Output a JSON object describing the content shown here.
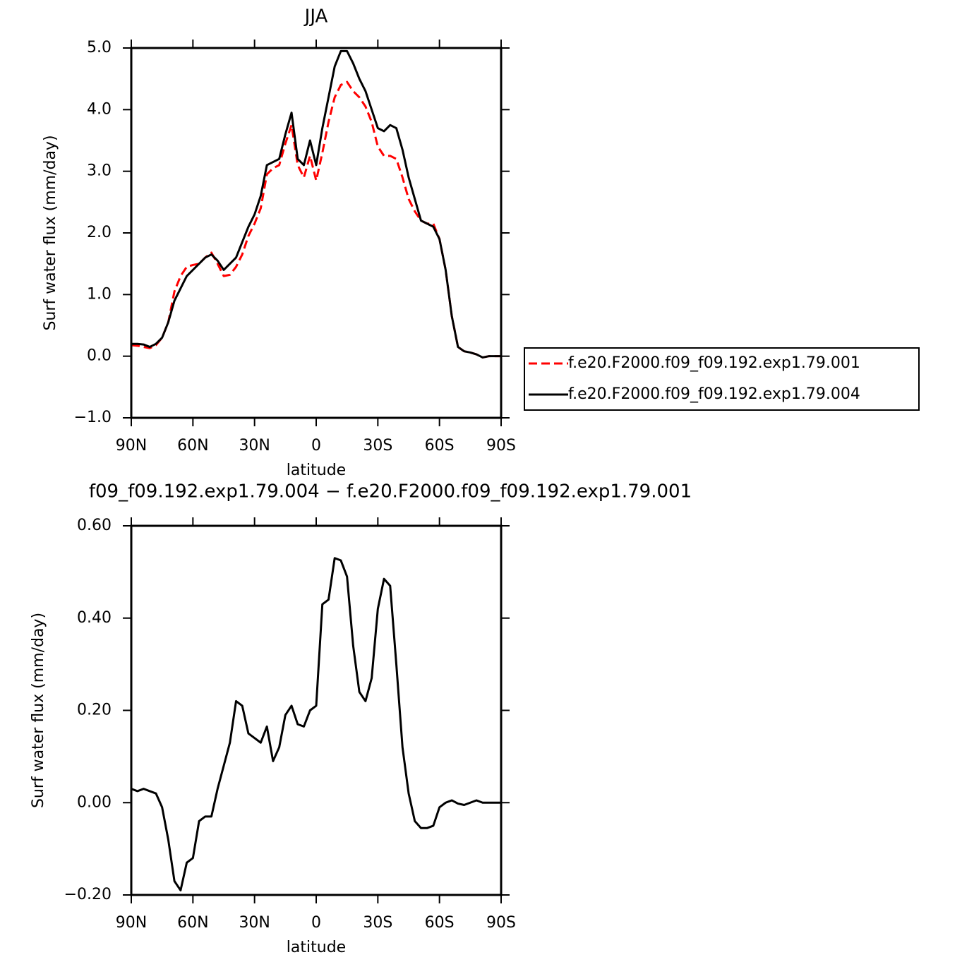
{
  "chart_data": [
    {
      "type": "line",
      "title": "JJA",
      "xlabel": "latitude",
      "ylabel": "Surf water flux (mm/day)",
      "x": [
        90,
        87,
        84,
        81,
        78,
        75,
        72,
        69,
        66,
        63,
        60,
        57,
        54,
        51,
        48,
        45,
        42,
        39,
        36,
        33,
        30,
        27,
        24,
        21,
        18,
        15,
        12,
        9,
        6,
        3,
        0,
        -3,
        -6,
        -9,
        -12,
        -15,
        -18,
        -21,
        -24,
        -27,
        -30,
        -33,
        -36,
        -39,
        -42,
        -45,
        -48,
        -51,
        -54,
        -57,
        -60,
        -63,
        -66,
        -69,
        -72,
        -75,
        -78,
        -81,
        -84,
        -87,
        -90
      ],
      "xlim": [
        90,
        -90
      ],
      "xticks": [
        {
          "value": 90,
          "label": "90N"
        },
        {
          "value": 60,
          "label": "60N"
        },
        {
          "value": 30,
          "label": "30N"
        },
        0,
        {
          "value": -30,
          "label": "30S"
        },
        {
          "value": -60,
          "label": "60S"
        },
        {
          "value": -90,
          "label": "90S"
        }
      ],
      "ylim": [
        -1,
        5
      ],
      "yticks": [
        {
          "value": -1,
          "label": "−1.0"
        },
        {
          "value": 0,
          "label": "0.0"
        },
        {
          "value": 1,
          "label": "1.0"
        },
        {
          "value": 2,
          "label": "2.0"
        },
        {
          "value": 3,
          "label": "3.0"
        },
        {
          "value": 4,
          "label": "4.0"
        },
        {
          "value": 5,
          "label": "5.0"
        }
      ],
      "legend": "right",
      "series": [
        {
          "name": "f.e20.F2000.f09_f09.192.exp1.79.001",
          "color": "#ff0000",
          "dashed": true,
          "values": [
            0.18,
            0.17,
            0.15,
            0.13,
            0.18,
            0.3,
            0.55,
            1.05,
            1.3,
            1.45,
            1.48,
            1.5,
            1.6,
            1.68,
            1.5,
            1.3,
            1.32,
            1.45,
            1.65,
            1.95,
            2.15,
            2.4,
            2.95,
            3.05,
            3.1,
            3.45,
            3.75,
            3.1,
            2.9,
            3.25,
            2.85,
            3.3,
            3.8,
            4.2,
            4.4,
            4.45,
            4.3,
            4.2,
            4.05,
            3.8,
            3.4,
            3.25,
            3.25,
            3.2,
            2.9,
            2.55,
            2.35,
            2.2,
            2.15,
            2.15,
            1.9,
            1.4,
            0.65,
            0.15,
            0.08,
            0.06,
            0.03,
            -0.02,
            0.0,
            0.0,
            0.0
          ]
        },
        {
          "name": "f.e20.F2000.f09_f09.192.exp1.79.004",
          "color": "#000000",
          "dashed": false,
          "values": [
            0.2,
            0.2,
            0.19,
            0.15,
            0.2,
            0.3,
            0.55,
            0.9,
            1.1,
            1.3,
            1.4,
            1.5,
            1.6,
            1.65,
            1.55,
            1.4,
            1.5,
            1.6,
            1.85,
            2.1,
            2.3,
            2.6,
            3.1,
            3.15,
            3.2,
            3.6,
            3.95,
            3.2,
            3.1,
            3.5,
            3.1,
            3.7,
            4.2,
            4.7,
            4.95,
            4.95,
            4.75,
            4.5,
            4.3,
            4.0,
            3.7,
            3.65,
            3.75,
            3.7,
            3.35,
            2.9,
            2.55,
            2.2,
            2.15,
            2.1,
            1.9,
            1.4,
            0.65,
            0.15,
            0.08,
            0.06,
            0.03,
            -0.02,
            0.0,
            0.0,
            0.0
          ]
        }
      ]
    },
    {
      "type": "line",
      "title": "f09_f09.192.exp1.79.004 − f.e20.F2000.f09_f09.192.exp1.79.001",
      "xlabel": "latitude",
      "ylabel": "Surf water flux (mm/day)",
      "x": [
        90,
        87,
        84,
        81,
        78,
        75,
        72,
        69,
        66,
        63,
        60,
        57,
        54,
        51,
        48,
        45,
        42,
        39,
        36,
        33,
        30,
        27,
        24,
        21,
        18,
        15,
        12,
        9,
        6,
        3,
        0,
        -3,
        -6,
        -9,
        -12,
        -15,
        -18,
        -21,
        -24,
        -27,
        -30,
        -33,
        -36,
        -39,
        -42,
        -45,
        -48,
        -51,
        -54,
        -57,
        -60,
        -63,
        -66,
        -69,
        -72,
        -75,
        -78,
        -81,
        -84,
        -87,
        -90
      ],
      "xlim": [
        90,
        -90
      ],
      "xticks": [
        {
          "value": 90,
          "label": "90N"
        },
        {
          "value": 60,
          "label": "60N"
        },
        {
          "value": 30,
          "label": "30N"
        },
        0,
        {
          "value": -30,
          "label": "30S"
        },
        {
          "value": -60,
          "label": "60S"
        },
        {
          "value": -90,
          "label": "90S"
        }
      ],
      "ylim": [
        -0.2,
        0.6
      ],
      "yticks": [
        {
          "value": -0.2,
          "label": "−0.20"
        },
        {
          "value": 0,
          "label": "0.00"
        },
        {
          "value": 0.2,
          "label": "0.20"
        },
        {
          "value": 0.4,
          "label": "0.40"
        },
        {
          "value": 0.6,
          "label": "0.60"
        }
      ],
      "series": [
        {
          "color": "#000000",
          "dashed": false,
          "values": [
            0.03,
            0.025,
            0.03,
            0.025,
            0.02,
            -0.01,
            -0.08,
            -0.17,
            -0.19,
            -0.13,
            -0.12,
            -0.04,
            -0.03,
            -0.03,
            0.03,
            0.08,
            0.13,
            0.22,
            0.21,
            0.15,
            0.14,
            0.13,
            0.165,
            0.09,
            0.12,
            0.19,
            0.21,
            0.17,
            0.165,
            0.2,
            0.21,
            0.43,
            0.44,
            0.53,
            0.525,
            0.49,
            0.34,
            0.24,
            0.22,
            0.27,
            0.42,
            0.485,
            0.47,
            0.3,
            0.12,
            0.02,
            -0.04,
            -0.055,
            -0.055,
            -0.05,
            -0.01,
            0.0,
            0.005,
            -0.002,
            -0.005,
            0.0,
            0.005,
            0.0,
            0.0,
            0.0,
            0.0
          ]
        }
      ]
    }
  ]
}
